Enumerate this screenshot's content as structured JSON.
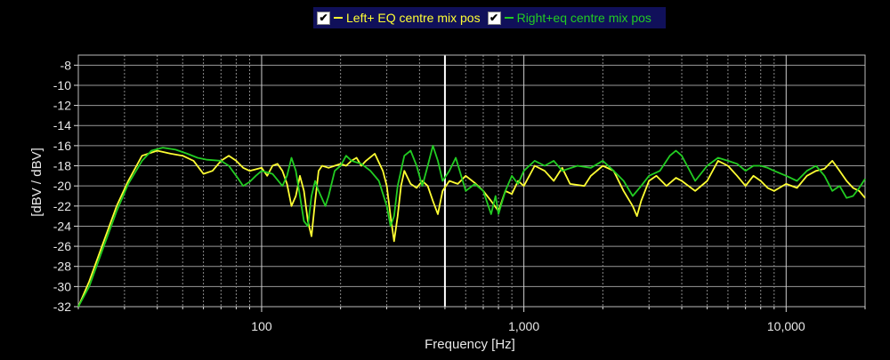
{
  "chart_data": {
    "type": "line",
    "xlabel": "Frequency [Hz]",
    "ylabel": "[dBV / dBV]",
    "x_scale": "log",
    "xlim": [
      20,
      20000
    ],
    "ylim": [
      -32,
      -7
    ],
    "grid": true,
    "legend_position": "top-center",
    "y_ticks": [
      -8,
      -10,
      -12,
      -14,
      -16,
      -18,
      -20,
      -22,
      -24,
      -26,
      -28,
      -30,
      -32
    ],
    "x_tick_labels": [
      {
        "value": 100,
        "label": "100"
      },
      {
        "value": 1000,
        "label": "1,000"
      },
      {
        "value": 10000,
        "label": "10,000"
      }
    ],
    "cursor_x": 500,
    "series": [
      {
        "name": "Left+ EQ centre mix pos",
        "color": "#ffff33",
        "points": [
          [
            20,
            -32
          ],
          [
            22,
            -29.5
          ],
          [
            25,
            -25.5
          ],
          [
            28,
            -22
          ],
          [
            31,
            -19.5
          ],
          [
            35,
            -17
          ],
          [
            40,
            -16.5
          ],
          [
            45,
            -16.8
          ],
          [
            50,
            -17
          ],
          [
            55,
            -17.5
          ],
          [
            60,
            -18.8
          ],
          [
            65,
            -18.5
          ],
          [
            70,
            -17.5
          ],
          [
            75,
            -17
          ],
          [
            80,
            -17.5
          ],
          [
            85,
            -18.2
          ],
          [
            90,
            -18.5
          ],
          [
            100,
            -18.2
          ],
          [
            105,
            -19
          ],
          [
            110,
            -18
          ],
          [
            115,
            -17.8
          ],
          [
            120,
            -18.5
          ],
          [
            125,
            -19.8
          ],
          [
            130,
            -22
          ],
          [
            135,
            -21
          ],
          [
            140,
            -19
          ],
          [
            145,
            -20.5
          ],
          [
            150,
            -23.5
          ],
          [
            155,
            -25
          ],
          [
            160,
            -21.5
          ],
          [
            165,
            -18.5
          ],
          [
            170,
            -18
          ],
          [
            180,
            -18.2
          ],
          [
            190,
            -18
          ],
          [
            200,
            -17.8
          ],
          [
            210,
            -18
          ],
          [
            220,
            -17.5
          ],
          [
            230,
            -17.2
          ],
          [
            240,
            -18
          ],
          [
            250,
            -17.5
          ],
          [
            270,
            -16.8
          ],
          [
            290,
            -18.5
          ],
          [
            300,
            -20
          ],
          [
            310,
            -23
          ],
          [
            320,
            -25.5
          ],
          [
            330,
            -23
          ],
          [
            340,
            -20
          ],
          [
            350,
            -18.5
          ],
          [
            370,
            -19.8
          ],
          [
            390,
            -20.2
          ],
          [
            410,
            -19.5
          ],
          [
            430,
            -20
          ],
          [
            450,
            -21.5
          ],
          [
            470,
            -22.8
          ],
          [
            490,
            -20.5
          ],
          [
            520,
            -19.5
          ],
          [
            560,
            -19.8
          ],
          [
            600,
            -19
          ],
          [
            650,
            -19.7
          ],
          [
            700,
            -20.5
          ],
          [
            750,
            -21.5
          ],
          [
            800,
            -22.5
          ],
          [
            850,
            -20.5
          ],
          [
            900,
            -20.8
          ],
          [
            950,
            -19.5
          ],
          [
            1000,
            -20
          ],
          [
            1100,
            -18
          ],
          [
            1200,
            -18.5
          ],
          [
            1300,
            -19.5
          ],
          [
            1400,
            -18.2
          ],
          [
            1500,
            -19.8
          ],
          [
            1700,
            -20
          ],
          [
            1800,
            -19
          ],
          [
            2000,
            -18
          ],
          [
            2200,
            -18.5
          ],
          [
            2400,
            -20.5
          ],
          [
            2600,
            -22
          ],
          [
            2700,
            -23
          ],
          [
            2800,
            -21.5
          ],
          [
            3000,
            -19.5
          ],
          [
            3200,
            -19
          ],
          [
            3500,
            -20
          ],
          [
            3800,
            -19.2
          ],
          [
            4000,
            -19.5
          ],
          [
            4500,
            -20.5
          ],
          [
            5000,
            -19.5
          ],
          [
            5500,
            -17.5
          ],
          [
            6000,
            -18
          ],
          [
            6500,
            -19
          ],
          [
            7000,
            -20
          ],
          [
            7500,
            -19
          ],
          [
            8000,
            -19.5
          ],
          [
            8500,
            -20.2
          ],
          [
            9000,
            -20.5
          ],
          [
            10000,
            -19.8
          ],
          [
            11000,
            -20.2
          ],
          [
            12000,
            -19
          ],
          [
            13000,
            -18.5
          ],
          [
            14000,
            -18.3
          ],
          [
            15000,
            -17.5
          ],
          [
            16000,
            -18.5
          ],
          [
            17000,
            -19.5
          ],
          [
            18000,
            -20.2
          ],
          [
            19000,
            -20.5
          ],
          [
            20000,
            -21.2
          ]
        ]
      },
      {
        "name": "Right+eq centre mix pos",
        "color": "#22cc22",
        "points": [
          [
            20,
            -32
          ],
          [
            22,
            -30
          ],
          [
            25,
            -26
          ],
          [
            28,
            -22.5
          ],
          [
            31,
            -19.8
          ],
          [
            35,
            -17.5
          ],
          [
            38,
            -16.5
          ],
          [
            42,
            -16.2
          ],
          [
            47,
            -16.4
          ],
          [
            52,
            -16.8
          ],
          [
            57,
            -17.2
          ],
          [
            62,
            -17.4
          ],
          [
            70,
            -17.5
          ],
          [
            75,
            -18
          ],
          [
            80,
            -19
          ],
          [
            85,
            -20
          ],
          [
            90,
            -19.6
          ],
          [
            95,
            -19
          ],
          [
            100,
            -18.5
          ],
          [
            110,
            -18.8
          ],
          [
            120,
            -20
          ],
          [
            125,
            -19
          ],
          [
            130,
            -17.2
          ],
          [
            135,
            -18.5
          ],
          [
            140,
            -21
          ],
          [
            145,
            -23.5
          ],
          [
            150,
            -24
          ],
          [
            155,
            -21
          ],
          [
            160,
            -19.5
          ],
          [
            165,
            -20.5
          ],
          [
            175,
            -22
          ],
          [
            180,
            -21
          ],
          [
            190,
            -18.5
          ],
          [
            200,
            -18
          ],
          [
            210,
            -17
          ],
          [
            220,
            -17.5
          ],
          [
            240,
            -17.8
          ],
          [
            260,
            -18.5
          ],
          [
            280,
            -19.5
          ],
          [
            300,
            -22
          ],
          [
            310,
            -24
          ],
          [
            320,
            -23
          ],
          [
            330,
            -20
          ],
          [
            350,
            -17
          ],
          [
            370,
            -16.5
          ],
          [
            390,
            -18
          ],
          [
            410,
            -20
          ],
          [
            430,
            -18
          ],
          [
            450,
            -16
          ],
          [
            470,
            -17.5
          ],
          [
            490,
            -19.5
          ],
          [
            520,
            -18.5
          ],
          [
            550,
            -17.2
          ],
          [
            600,
            -20.5
          ],
          [
            650,
            -19.8
          ],
          [
            700,
            -20.5
          ],
          [
            750,
            -22.8
          ],
          [
            780,
            -21
          ],
          [
            800,
            -22.8
          ],
          [
            850,
            -20.5
          ],
          [
            900,
            -19
          ],
          [
            950,
            -19.8
          ],
          [
            1000,
            -18.5
          ],
          [
            1100,
            -17.5
          ],
          [
            1200,
            -18
          ],
          [
            1300,
            -17.5
          ],
          [
            1400,
            -18.5
          ],
          [
            1600,
            -18
          ],
          [
            1800,
            -18.2
          ],
          [
            2000,
            -17.5
          ],
          [
            2200,
            -18.5
          ],
          [
            2400,
            -19.5
          ],
          [
            2600,
            -21
          ],
          [
            2800,
            -20
          ],
          [
            3000,
            -19
          ],
          [
            3300,
            -18.5
          ],
          [
            3600,
            -17
          ],
          [
            3800,
            -16.5
          ],
          [
            4000,
            -17
          ],
          [
            4500,
            -19.5
          ],
          [
            5000,
            -18
          ],
          [
            5500,
            -17.2
          ],
          [
            6000,
            -17.5
          ],
          [
            6500,
            -17.8
          ],
          [
            7000,
            -18.5
          ],
          [
            7500,
            -18
          ],
          [
            8000,
            -18
          ],
          [
            8500,
            -18.2
          ],
          [
            9000,
            -18.5
          ],
          [
            10000,
            -19
          ],
          [
            11000,
            -19.5
          ],
          [
            12000,
            -18.5
          ],
          [
            13000,
            -18
          ],
          [
            14000,
            -19
          ],
          [
            15000,
            -20.5
          ],
          [
            16000,
            -20
          ],
          [
            17000,
            -21.2
          ],
          [
            18000,
            -21
          ],
          [
            19000,
            -20.2
          ],
          [
            20000,
            -19.3
          ]
        ]
      }
    ]
  }
}
